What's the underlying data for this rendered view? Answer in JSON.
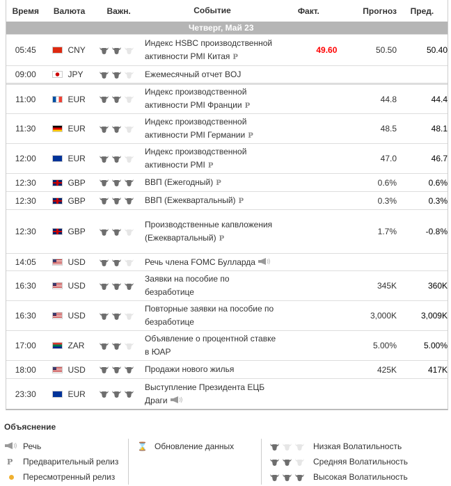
{
  "header": {
    "time": "Время",
    "currency": "Валюта",
    "importance": "Важн.",
    "event": "Событие",
    "actual": "Факт.",
    "forecast": "Прогноз",
    "previous": "Пред."
  },
  "date_bar": "Четверг, Май 23",
  "colors": {
    "actual_highlight": "#ff0000",
    "bull_active": "#6e6e6e",
    "bull_inactive": "#e6e6e6",
    "date_bar": "#b5b5b5"
  },
  "rows": [
    {
      "time": "05:45",
      "flag": "cn",
      "currency": "CNY",
      "bulls": 2,
      "event": "Индекс HSBC производственной активности PMI Китая",
      "mark": "P",
      "actual": "49.60",
      "forecast": "50.50",
      "previous": "50.40"
    },
    {
      "time": "09:00",
      "flag": "jp",
      "currency": "JPY",
      "bulls": 2,
      "event": "Ежемесячный отчет BOJ",
      "mark": "",
      "actual": "",
      "forecast": "",
      "previous": ""
    },
    {
      "time": "11:00",
      "flag": "fr",
      "currency": "EUR",
      "bulls": 2,
      "event": "Индекс производственной активности PMI Франции",
      "mark": "P",
      "actual": "",
      "forecast": "44.8",
      "previous": "44.4"
    },
    {
      "time": "11:30",
      "flag": "de",
      "currency": "EUR",
      "bulls": 2,
      "event": "Индекс производственной активности PMI Германии",
      "mark": "P",
      "actual": "",
      "forecast": "48.5",
      "previous": "48.1"
    },
    {
      "time": "12:00",
      "flag": "eu",
      "currency": "EUR",
      "bulls": 2,
      "event": "Индекс производственной активности PMI",
      "mark": "P",
      "actual": "",
      "forecast": "47.0",
      "previous": "46.7"
    },
    {
      "time": "12:30",
      "flag": "gb",
      "currency": "GBP",
      "bulls": 3,
      "event": "ВВП (Ежегодный)",
      "mark": "P",
      "actual": "",
      "forecast": "0.6%",
      "previous": "0.6%"
    },
    {
      "time": "12:30",
      "flag": "gb",
      "currency": "GBP",
      "bulls": 3,
      "event": "ВВП (Ежеквартальный)",
      "mark": "P",
      "actual": "",
      "forecast": "0.3%",
      "previous": "0.3%"
    },
    {
      "time": "12:30",
      "flag": "gb",
      "currency": "GBP",
      "bulls": 2,
      "event": "Производственные капвложения (Ежеквартальный)",
      "mark": "P",
      "actual": "",
      "forecast": "1.7%",
      "previous": "-0.8%"
    },
    {
      "time": "14:05",
      "flag": "us",
      "currency": "USD",
      "bulls": 2,
      "event": "Речь члена FOMC Булларда",
      "mark": "speech",
      "actual": "",
      "forecast": "",
      "previous": ""
    },
    {
      "time": "16:30",
      "flag": "us",
      "currency": "USD",
      "bulls": 3,
      "event": "Заявки на пособие по безработице",
      "mark": "",
      "actual": "",
      "forecast": "345K",
      "previous": "360K"
    },
    {
      "time": "16:30",
      "flag": "us",
      "currency": "USD",
      "bulls": 2,
      "event": "Повторные заявки на пособие по безработице",
      "mark": "",
      "actual": "",
      "forecast": "3,000K",
      "previous": "3,009K"
    },
    {
      "time": "17:00",
      "flag": "za",
      "currency": "ZAR",
      "bulls": 2,
      "event": "Объявление о процентной ставке в ЮАР",
      "mark": "",
      "actual": "",
      "forecast": "5.00%",
      "previous": "5.00%"
    },
    {
      "time": "18:00",
      "flag": "us",
      "currency": "USD",
      "bulls": 3,
      "event": "Продажи нового жилья",
      "mark": "",
      "actual": "",
      "forecast": "425K",
      "previous": "417K"
    },
    {
      "time": "23:30",
      "flag": "eu",
      "currency": "EUR",
      "bulls": 3,
      "event": "Выступление Президента ЕЦБ Драги",
      "mark": "speech",
      "actual": "",
      "forecast": "",
      "previous": ""
    }
  ],
  "legend": {
    "title": "Объяснение",
    "speech": "Речь",
    "preliminary": "Предварительный релиз",
    "preliminary_mark": "P",
    "revised": "Пересмотренный релиз",
    "update": "Обновление данных",
    "low": "Низкая Волатильность",
    "medium": "Средняя Волатильность",
    "high": "Высокая Волатильность"
  }
}
